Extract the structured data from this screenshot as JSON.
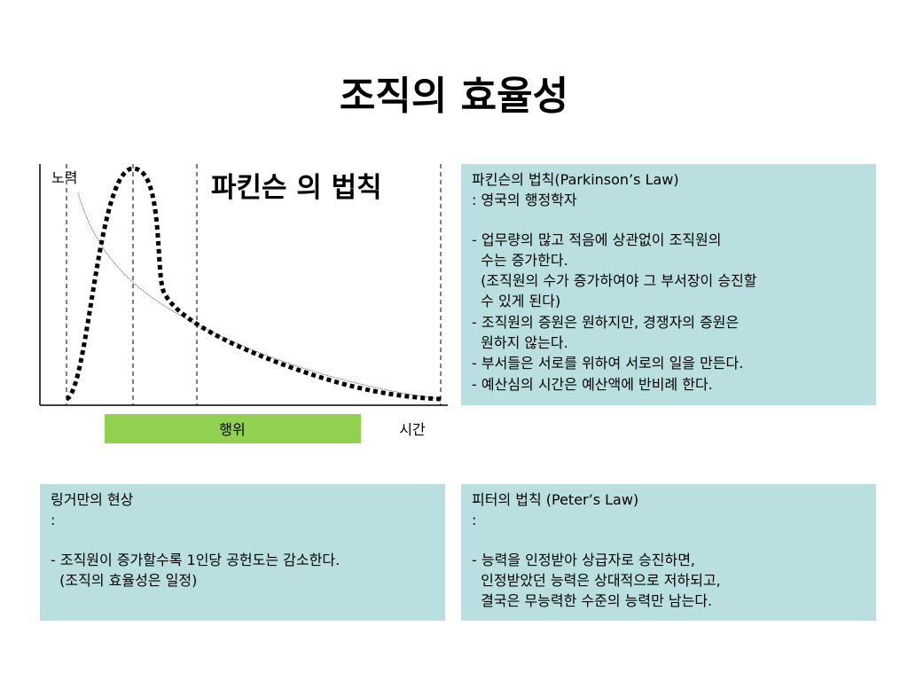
{
  "title": "조직의 효율성",
  "diagram": {
    "y_label": "노력",
    "heading": "파킨슨 의 법칙",
    "action_label": "행위",
    "x_label": "시간"
  },
  "boxes": [
    {
      "head": [
        "파킨슨의 법칙(Parkinson’s Law)",
        ": 영국의 행정학자"
      ],
      "body": [
        "- 업무량의 많고 적음에 상관없이 조직원의",
        "  수는 증가한다.",
        "  (조직원의 수가 증가하여야 그 부서장이 승진할",
        "  수 있게 된다)",
        "- 조직원의 증원은 원하지만, 경쟁자의 증원은",
        "  원하지 않는다.",
        "- 부서들은 서로를 위하여 서로의 일을 만든다.",
        "- 예산심의 시간은 예산액에 반비례 한다."
      ]
    },
    {
      "head": [
        "링거만의 현상",
        ":"
      ],
      "body": [
        "- 조직원이 증가할수록 1인당 공헌도는 감소한다.",
        "  (조직의 효율성은 일정)"
      ]
    },
    {
      "head": [
        "피터의 법칙 (Peter’s Law)",
        ":"
      ],
      "body": [
        "- 능력을 인정받아 상급자로 승진하면,",
        "  인정받았던 능력은 상대적으로 저하되고,",
        "  결국은 무능력한 수준의 능력만 남는다."
      ]
    }
  ]
}
